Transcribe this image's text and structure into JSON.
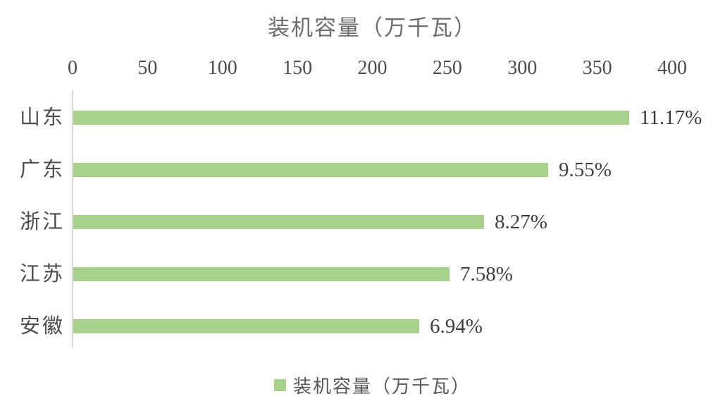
{
  "chart_data": {
    "type": "bar",
    "orientation": "horizontal",
    "title": "装机容量（万千瓦）",
    "categories": [
      "山东",
      "广东",
      "浙江",
      "江苏",
      "安徽"
    ],
    "values": [
      371,
      317,
      274,
      251,
      231
    ],
    "value_labels": [
      "11.17%",
      "9.55%",
      "8.27%",
      "7.58%",
      "6.94%"
    ],
    "xlabel": "",
    "ylabel": "",
    "xlim": [
      0,
      400
    ],
    "x_ticks": [
      0,
      50,
      100,
      150,
      200,
      250,
      300,
      350,
      400
    ],
    "grid": false,
    "legend": {
      "position": "bottom",
      "label": "装机容量（万千瓦）"
    },
    "colors": {
      "bar": "#A9D18E",
      "axis_line": "#D9D9D9",
      "tick_text": "#4D4D4D",
      "category_text": "#4D4D4D",
      "value_label_text": "#3D3D3D",
      "title_text": "#6E6E6E",
      "legend_text": "#595959",
      "background": "#FFFFFF"
    }
  }
}
